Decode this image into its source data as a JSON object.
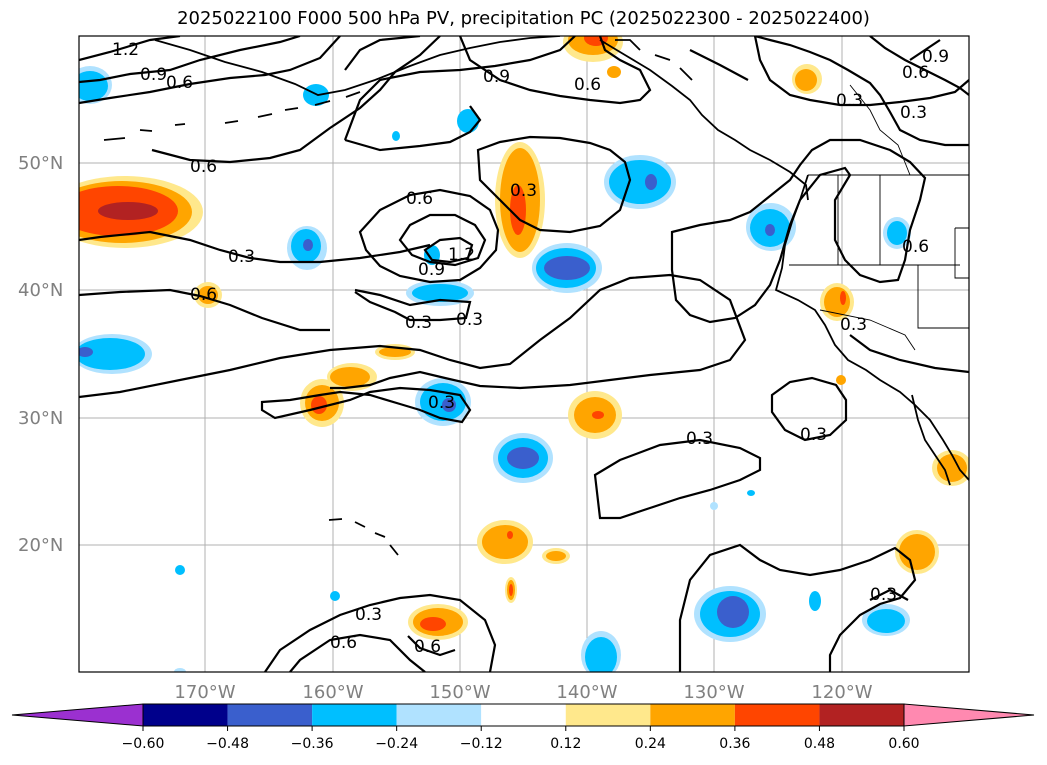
{
  "title": "2025022100 F000 500 hPa PV, precipitation PC (2025022300 - 2025022400)",
  "lat_ticks": [
    "50°N",
    "40°N",
    "30°N",
    "20°N"
  ],
  "lon_ticks": [
    "170°W",
    "160°W",
    "150°W",
    "140°W",
    "130°W",
    "120°W"
  ],
  "colorbar": {
    "ticks": [
      "−0.60",
      "−0.48",
      "−0.36",
      "−0.24",
      "−0.12",
      "0.12",
      "0.24",
      "0.36",
      "0.48",
      "0.60"
    ],
    "colors": [
      "#9b30d0",
      "#00008b",
      "#3a5fcd",
      "#00bfff",
      "#b0e2ff",
      "#ffffff",
      "#ffe88c",
      "#ffa500",
      "#ff4500",
      "#b22222",
      "#ff89b0"
    ]
  },
  "contour_labels": [
    {
      "text": "1.2"
    },
    {
      "text": "0.9"
    },
    {
      "text": "0.6"
    },
    {
      "text": "0.9"
    },
    {
      "text": "0.6"
    },
    {
      "text": "0.6"
    },
    {
      "text": "0.9"
    },
    {
      "text": "0.3"
    },
    {
      "text": "0.3"
    },
    {
      "text": "0.6"
    },
    {
      "text": "0.3"
    },
    {
      "text": "0.6"
    },
    {
      "text": "1.2"
    },
    {
      "text": "0.9"
    },
    {
      "text": "0.3"
    },
    {
      "text": "0.6"
    },
    {
      "text": "0.3"
    },
    {
      "text": "0.3"
    },
    {
      "text": "0.3"
    },
    {
      "text": "0.3"
    },
    {
      "text": "0.3"
    },
    {
      "text": "0.3"
    },
    {
      "text": "0.3"
    },
    {
      "text": "0.6"
    },
    {
      "text": "0.6"
    },
    {
      "text": "0.6"
    },
    {
      "text": "0.3"
    }
  ]
}
